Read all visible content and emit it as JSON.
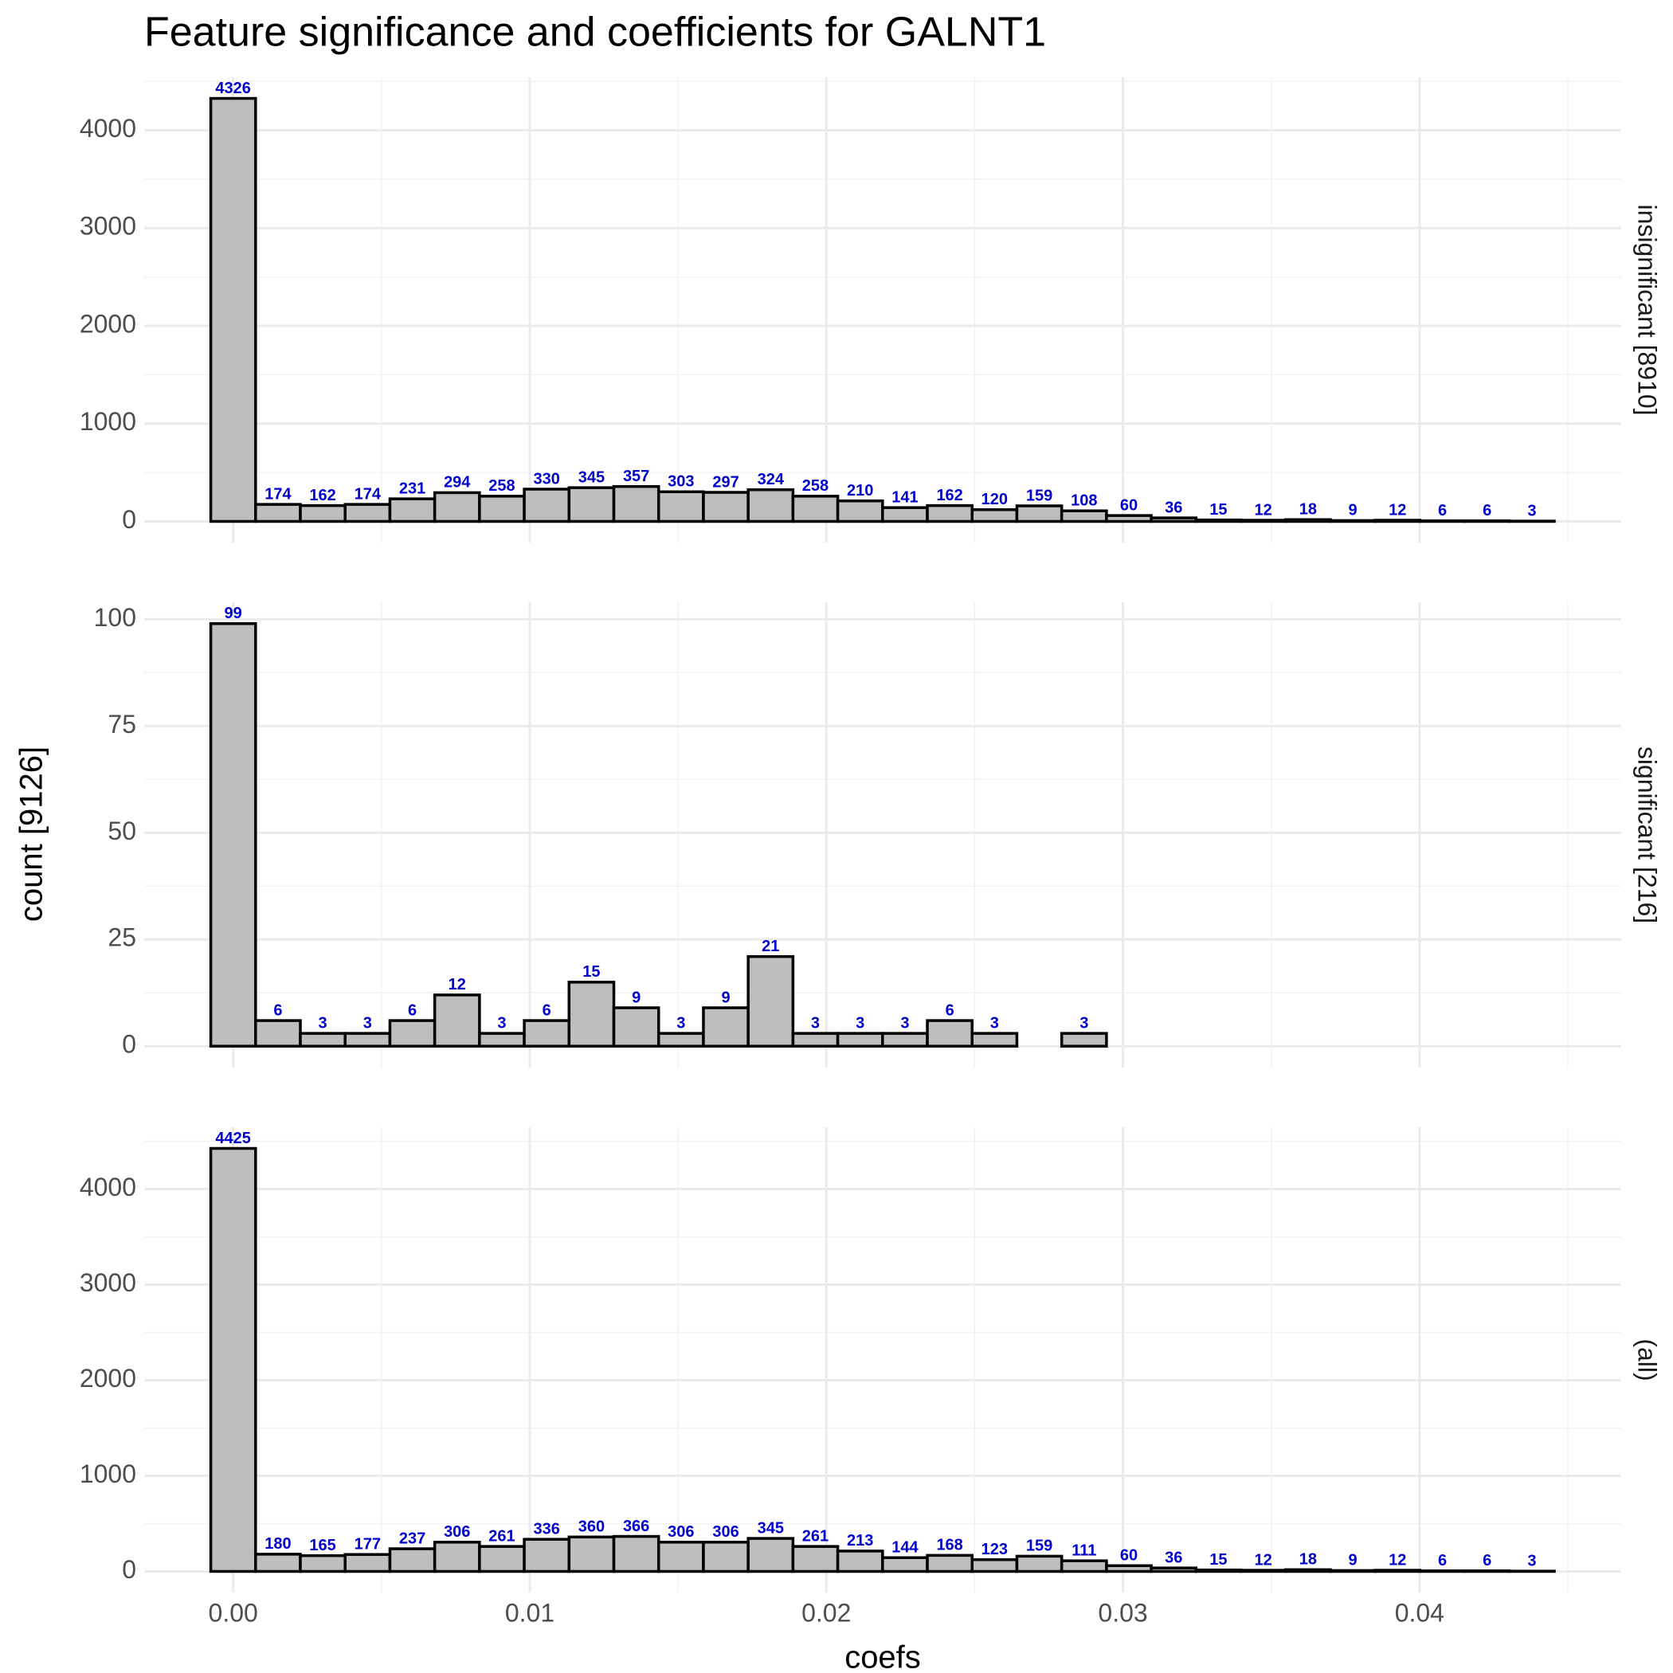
{
  "chart_data": {
    "type": "histogram",
    "title": "Feature significance and coefficients for GALNT1",
    "xlabel": "coefs",
    "ylabel": "count [9126]",
    "color": "#bebebe",
    "edgecolor": "#000000",
    "label_color": "#0000cc",
    "grid": true,
    "bins": [
      -0.000755,
      0.000755,
      0.002265,
      0.003775,
      0.005285,
      0.006795,
      0.008305,
      0.009815,
      0.011325,
      0.012835,
      0.014345,
      0.015855,
      0.017365,
      0.018875,
      0.020385,
      0.021895,
      0.023405,
      0.024915,
      0.026425,
      0.027935,
      0.029445,
      0.030955,
      0.032465,
      0.033975,
      0.035485,
      0.036995,
      0.038505,
      0.040015,
      0.041525,
      0.043035,
      0.044545
    ],
    "xlim": [
      -0.003,
      0.0468
    ],
    "xticks": [
      {
        "value": 0,
        "label": "0.00"
      },
      0.01,
      0.02,
      0.03,
      0.04
    ],
    "panels": [
      {
        "name": "insignificant [8910]",
        "ylim": [
          -216,
          4542
        ],
        "yticks": [
          0,
          1000,
          2000,
          3000,
          4000
        ],
        "values": [
          4326,
          174,
          162,
          174,
          231,
          294,
          258,
          330,
          345,
          357,
          303,
          297,
          324,
          258,
          210,
          141,
          162,
          120,
          159,
          108,
          60,
          36,
          15,
          12,
          18,
          9,
          12,
          6,
          6,
          3
        ]
      },
      {
        "name": "significant [216]",
        "ylim": [
          -5,
          104
        ],
        "yticks": [
          0,
          25,
          50,
          75,
          100
        ],
        "values": [
          99,
          6,
          3,
          3,
          6,
          12,
          3,
          6,
          15,
          9,
          3,
          9,
          21,
          3,
          3,
          3,
          6,
          3,
          0,
          3,
          0,
          0,
          0,
          0,
          0,
          0,
          0,
          0,
          0,
          0
        ]
      },
      {
        "name": "(all)",
        "ylim": [
          -221,
          4646
        ],
        "yticks": [
          0,
          1000,
          2000,
          3000,
          4000
        ],
        "values": [
          4425,
          180,
          165,
          177,
          237,
          306,
          261,
          336,
          360,
          366,
          306,
          306,
          345,
          261,
          213,
          144,
          168,
          123,
          159,
          111,
          60,
          36,
          15,
          12,
          18,
          9,
          12,
          6,
          6,
          3
        ]
      }
    ]
  }
}
